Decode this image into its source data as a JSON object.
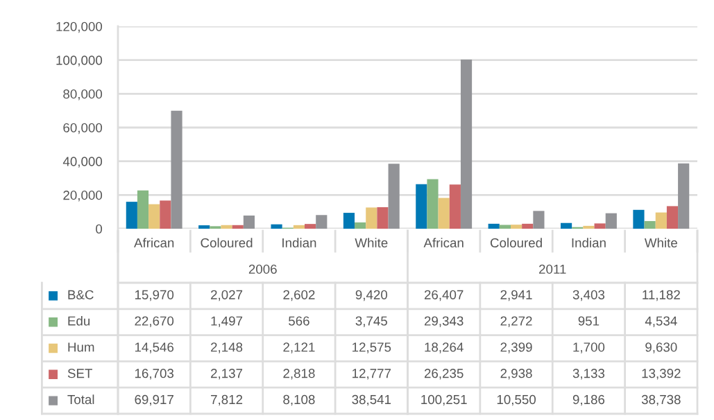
{
  "chart_data": {
    "type": "bar",
    "categories": [
      "African",
      "Coloured",
      "Indian",
      "White",
      "African",
      "Coloured",
      "Indian",
      "White"
    ],
    "annotations": [
      "2006",
      "2011"
    ],
    "series": [
      {
        "name": "B&C",
        "color": "#0079b5",
        "values": [
          15970,
          2027,
          2602,
          9420,
          26407,
          2941,
          3403,
          11182
        ],
        "value_labels": [
          "15,970",
          "2,027",
          "2,602",
          "9,420",
          "26,407",
          "2,941",
          "3,403",
          "11,182"
        ]
      },
      {
        "name": "Edu",
        "color": "#86b883",
        "values": [
          22670,
          1497,
          566,
          3745,
          29343,
          2272,
          951,
          4534
        ],
        "value_labels": [
          "22,670",
          "1,497",
          "566",
          "3,745",
          "29,343",
          "2,272",
          "951",
          "4,534"
        ]
      },
      {
        "name": "Hum",
        "color": "#e8c77a",
        "values": [
          14546,
          2148,
          2121,
          12575,
          18264,
          2399,
          1700,
          9630
        ],
        "value_labels": [
          "14,546",
          "2,148",
          "2,121",
          "12,575",
          "18,264",
          "2,399",
          "1,700",
          "9,630"
        ]
      },
      {
        "name": "SET",
        "color": "#cd6668",
        "values": [
          16703,
          2137,
          2818,
          12777,
          26235,
          2938,
          3133,
          13392
        ],
        "value_labels": [
          "16,703",
          "2,137",
          "2,818",
          "12,777",
          "26,235",
          "2,938",
          "3,133",
          "13,392"
        ]
      },
      {
        "name": "Total",
        "color": "#929397",
        "values": [
          69917,
          7812,
          8108,
          38541,
          100251,
          10550,
          9186,
          38738
        ],
        "value_labels": [
          "69,917",
          "7,812",
          "8,108",
          "38,541",
          "100,251",
          "10,550",
          "9,186",
          "38,738"
        ]
      }
    ],
    "ylim": [
      0,
      120000
    ],
    "yticks": [
      {
        "value": 0,
        "label": "0"
      },
      {
        "value": 20000,
        "label": "20,000"
      },
      {
        "value": 40000,
        "label": "40,000"
      },
      {
        "value": 60000,
        "label": "60,000"
      },
      {
        "value": 80000,
        "label": "80,000"
      },
      {
        "value": 100000,
        "label": "100,000"
      },
      {
        "value": 120000,
        "label": "120,000"
      }
    ],
    "grid": "y",
    "legend": "bottom"
  }
}
